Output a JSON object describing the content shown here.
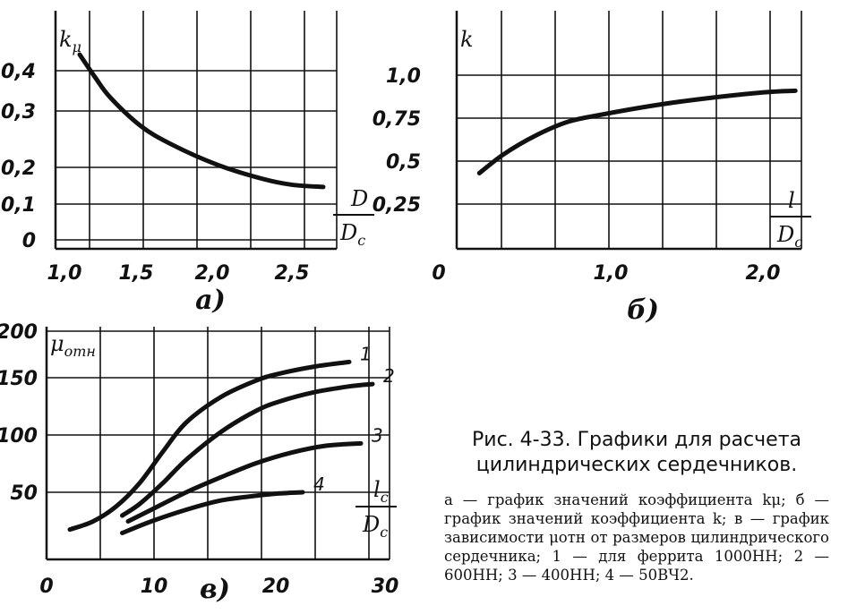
{
  "chart_data": [
    {
      "type": "line",
      "panel_label": "а)",
      "ylabel": "k",
      "ylabel_sub": "μ",
      "xlabel_num": "D",
      "xlabel_den": "D",
      "xlabel_den_sub": "c",
      "x_ticks": [
        "1,0",
        "1,5",
        "2,0",
        "2,5"
      ],
      "y_ticks": [
        "0",
        "0,1",
        "0,2",
        "0,3",
        "0,4"
      ],
      "xlim": [
        1.0,
        2.75
      ],
      "ylim": [
        0,
        0.48
      ],
      "grid": true,
      "series": [
        {
          "x": [
            1.1,
            1.2,
            1.3,
            1.5,
            1.7,
            2.0,
            2.3,
            2.5,
            2.7
          ],
          "y": [
            0.455,
            0.4,
            0.35,
            0.28,
            0.235,
            0.185,
            0.15,
            0.135,
            0.13
          ]
        }
      ]
    },
    {
      "type": "line",
      "panel_label": "б)",
      "ylabel": "k",
      "xlabel_num": "l",
      "xlabel_den": "D",
      "xlabel_den_sub": "c",
      "x_ticks": [
        "0",
        "1,0",
        "2,0"
      ],
      "y_ticks": [
        "0,25",
        "0,5",
        "0,75",
        "1,0"
      ],
      "xlim": [
        0,
        2.3
      ],
      "ylim": [
        0,
        1.25
      ],
      "grid": true,
      "series": [
        {
          "x": [
            0.25,
            0.4,
            0.6,
            0.8,
            1.0,
            1.3,
            1.6,
            2.0,
            2.2
          ],
          "y": [
            0.44,
            0.55,
            0.66,
            0.74,
            0.78,
            0.83,
            0.87,
            0.91,
            0.92
          ]
        }
      ]
    },
    {
      "type": "line",
      "panel_label": "в)",
      "ylabel": "μ",
      "ylabel_sub": "отн",
      "xlabel_num": "l",
      "xlabel_num_sub": "c",
      "xlabel_den": "D",
      "xlabel_den_sub": "c",
      "x_ticks": [
        "0",
        "10",
        "20",
        "30"
      ],
      "y_ticks": [
        "50",
        "100",
        "150",
        "200"
      ],
      "xlim": [
        0,
        30
      ],
      "ylim": [
        0,
        200
      ],
      "grid": true,
      "series": [
        {
          "name": "1",
          "x": [
            2,
            4,
            6,
            8,
            10,
            12,
            15,
            18,
            20,
            23,
            26
          ],
          "y": [
            18,
            25,
            38,
            58,
            85,
            110,
            132,
            146,
            152,
            158,
            162
          ]
        },
        {
          "name": "2",
          "x": [
            6.5,
            8,
            10,
            12,
            15,
            18,
            20,
            23,
            26,
            28
          ],
          "y": [
            30,
            40,
            58,
            78,
            102,
            120,
            128,
            136,
            141,
            143
          ]
        },
        {
          "name": "3",
          "x": [
            7,
            9,
            12,
            15,
            18,
            21,
            24,
            27
          ],
          "y": [
            25,
            35,
            50,
            63,
            75,
            84,
            90,
            92
          ]
        },
        {
          "name": "4",
          "x": [
            6.5,
            9,
            12,
            15,
            18,
            20,
            22
          ],
          "y": [
            15,
            25,
            35,
            43,
            47,
            49,
            50
          ]
        }
      ]
    }
  ],
  "caption": {
    "title": "Рис. 4-33. Графики для расчета цилиндрических сердечников.",
    "text": "а — график значений коэффициента kμ; б — график значений коэффициента k; в — график зависимости μотн от размеров цилиндрического сердечника; 1 — для феррита 1000НН; 2 — 600НН; 3 — 400НН; 4 — 50ВЧ2."
  }
}
